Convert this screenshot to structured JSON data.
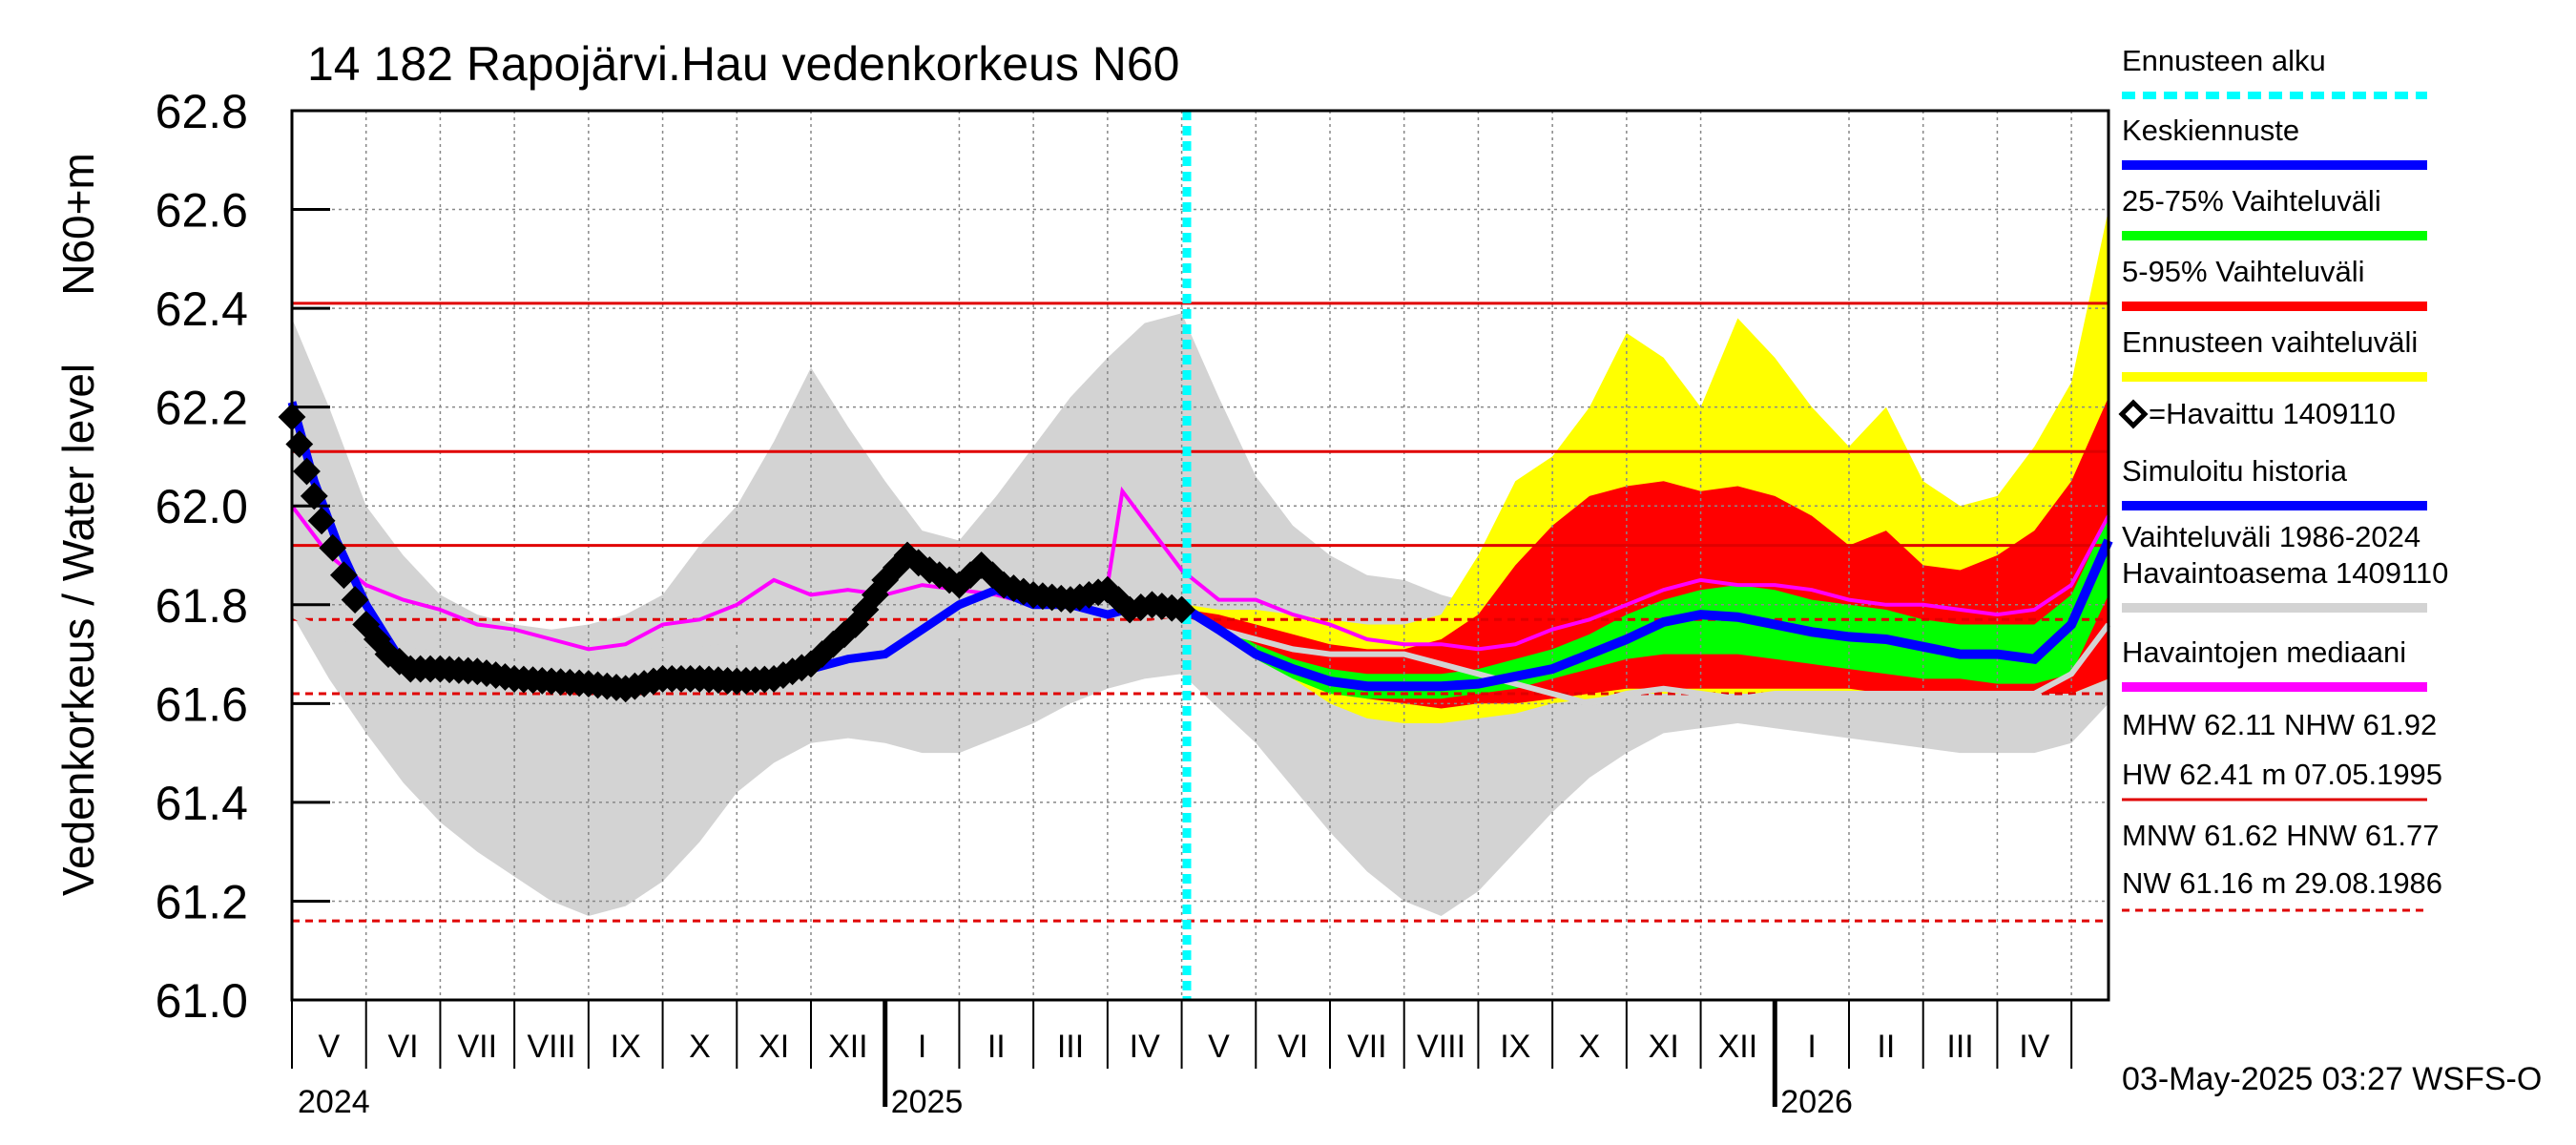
{
  "chart_data": {
    "type": "area",
    "title": "14 182 Rapojärvi.Hau vedenkorkeus N60",
    "ylabel_outer": "Vedenkorkeus / Water level",
    "ylabel_inner": "N60+m",
    "ylim": [
      61.0,
      62.8
    ],
    "y_ticks": [
      "62.8",
      "62.6",
      "62.4",
      "62.2",
      "62.0",
      "61.8",
      "61.6",
      "61.4",
      "61.2",
      "61.0"
    ],
    "x_range": [
      0.0,
      24.5
    ],
    "x_unit": "months since 2024-05-01",
    "month_labels": [
      "V",
      "VI",
      "VII",
      "VIII",
      "IX",
      "X",
      "XI",
      "XII",
      "I",
      "II",
      "III",
      "IV",
      "V",
      "VI",
      "VII",
      "VIII",
      "IX",
      "X",
      "XI",
      "XII",
      "I",
      "II",
      "III",
      "IV"
    ],
    "year_labels": [
      {
        "x": 0.0,
        "label": "2024"
      },
      {
        "x": 8.0,
        "label": "2025"
      },
      {
        "x": 20.0,
        "label": "2026"
      }
    ],
    "year_boundaries": [
      8.0,
      20.0
    ],
    "forecast_start_x": 12.07,
    "grid": true,
    "reference_lines": [
      {
        "name": "HW",
        "value": 62.41,
        "style": "solid"
      },
      {
        "name": "MHW",
        "value": 62.11,
        "style": "solid"
      },
      {
        "name": "NHW",
        "value": 61.92,
        "style": "solid"
      },
      {
        "name": "HNW",
        "value": 61.77,
        "style": "dashed"
      },
      {
        "name": "MNW",
        "value": 61.62,
        "style": "dashed"
      },
      {
        "name": "NW",
        "value": 61.16,
        "style": "dashed"
      }
    ],
    "series": {
      "history_band": {
        "x": [
          0,
          0.5,
          1,
          1.5,
          2,
          2.5,
          3,
          3.5,
          4,
          4.5,
          5,
          5.5,
          6,
          6.5,
          7,
          7.5,
          8,
          8.5,
          9,
          9.5,
          10,
          10.5,
          11,
          11.5,
          12,
          12.5,
          13,
          13.5,
          14,
          14.5,
          15,
          15.5,
          16,
          16.5,
          17,
          17.5,
          18,
          18.5,
          19,
          19.5,
          20,
          20.5,
          21,
          21.5,
          22,
          22.5,
          23,
          23.5,
          24,
          24.5
        ],
        "upper": [
          62.38,
          62.2,
          62.0,
          61.9,
          61.82,
          61.78,
          61.76,
          61.75,
          61.76,
          61.78,
          61.82,
          61.92,
          62.0,
          62.13,
          62.28,
          62.16,
          62.05,
          61.95,
          61.93,
          62.02,
          62.12,
          62.22,
          62.3,
          62.37,
          62.39,
          62.22,
          62.06,
          61.96,
          61.9,
          61.86,
          61.85,
          61.82,
          61.8,
          61.78,
          61.77,
          61.78,
          61.77,
          61.78,
          61.8,
          61.82,
          61.83,
          61.85,
          61.86,
          61.86,
          61.86,
          61.86,
          61.86,
          61.85,
          61.86,
          61.9
        ],
        "lower": [
          61.78,
          61.65,
          61.54,
          61.44,
          61.36,
          61.3,
          61.25,
          61.2,
          61.17,
          61.19,
          61.24,
          61.32,
          61.42,
          61.48,
          61.52,
          61.53,
          61.52,
          61.5,
          61.5,
          61.53,
          61.56,
          61.6,
          61.63,
          61.65,
          61.66,
          61.59,
          61.52,
          61.43,
          61.34,
          61.26,
          61.2,
          61.17,
          61.22,
          61.3,
          61.38,
          61.45,
          61.5,
          61.54,
          61.55,
          61.56,
          61.55,
          61.54,
          61.53,
          61.52,
          61.51,
          61.5,
          61.5,
          61.5,
          61.52,
          61.6
        ]
      },
      "ennusteen_vaihteluvali": {
        "x": [
          12.07,
          12.5,
          13,
          13.5,
          14,
          14.5,
          15,
          15.5,
          16,
          16.5,
          17,
          17.5,
          18,
          18.5,
          19,
          19.5,
          20,
          20.5,
          21,
          21.5,
          22,
          22.5,
          23,
          23.5,
          24,
          24.5
        ],
        "upper": [
          61.8,
          61.79,
          61.79,
          61.78,
          61.77,
          61.76,
          61.76,
          61.78,
          61.9,
          62.05,
          62.1,
          62.2,
          62.35,
          62.3,
          62.2,
          62.38,
          62.3,
          62.2,
          62.12,
          62.2,
          62.05,
          62.0,
          62.02,
          62.12,
          62.25,
          62.6
        ],
        "lower": [
          61.79,
          61.74,
          61.7,
          61.65,
          61.6,
          61.57,
          61.56,
          61.56,
          61.57,
          61.58,
          61.6,
          61.61,
          61.62,
          61.62,
          61.62,
          61.62,
          61.62,
          61.62,
          61.62,
          61.62,
          61.62,
          61.62,
          61.62,
          61.62,
          61.62,
          61.65
        ]
      },
      "vaihteluvali_5_95": {
        "x": [
          12.07,
          12.5,
          13,
          13.5,
          14,
          14.5,
          15,
          15.5,
          16,
          16.5,
          17,
          17.5,
          18,
          18.5,
          19,
          19.5,
          20,
          20.5,
          21,
          21.5,
          22,
          22.5,
          23,
          23.5,
          24,
          24.5
        ],
        "upper": [
          61.79,
          61.78,
          61.76,
          61.74,
          61.72,
          61.71,
          61.71,
          61.73,
          61.78,
          61.88,
          61.96,
          62.02,
          62.04,
          62.05,
          62.03,
          62.04,
          62.02,
          61.98,
          61.92,
          61.95,
          61.88,
          61.87,
          61.9,
          61.95,
          62.05,
          62.22
        ],
        "lower": [
          61.79,
          61.75,
          61.71,
          61.67,
          61.63,
          61.61,
          61.6,
          61.59,
          61.6,
          61.6,
          61.61,
          61.62,
          61.63,
          61.63,
          61.63,
          61.63,
          61.63,
          61.63,
          61.63,
          61.62,
          61.62,
          61.62,
          61.62,
          61.62,
          61.62,
          61.65
        ]
      },
      "vaihteluvali_25_75": {
        "x": [
          12.07,
          12.5,
          13,
          13.5,
          14,
          14.5,
          15,
          15.5,
          16,
          16.5,
          17,
          17.5,
          18,
          18.5,
          19,
          19.5,
          20,
          20.5,
          21,
          21.5,
          22,
          22.5,
          23,
          23.5,
          24,
          24.5
        ],
        "upper": [
          61.79,
          61.76,
          61.72,
          61.69,
          61.67,
          61.66,
          61.66,
          61.66,
          61.67,
          61.69,
          61.71,
          61.74,
          61.78,
          61.81,
          61.83,
          61.84,
          61.83,
          61.81,
          61.8,
          61.79,
          61.77,
          61.76,
          61.76,
          61.76,
          61.82,
          61.98
        ],
        "lower": [
          61.79,
          61.74,
          61.69,
          61.65,
          61.62,
          61.61,
          61.61,
          61.61,
          61.62,
          61.63,
          61.65,
          61.67,
          61.69,
          61.7,
          61.7,
          61.7,
          61.69,
          61.68,
          61.67,
          61.66,
          61.65,
          61.65,
          61.64,
          61.64,
          61.66,
          61.82
        ]
      },
      "keskiennuste": {
        "x": [
          12.07,
          12.5,
          13,
          13.5,
          14,
          14.5,
          15,
          15.5,
          16,
          16.5,
          17,
          17.5,
          18,
          18.5,
          19,
          19.5,
          20,
          20.5,
          21,
          21.5,
          22,
          22.5,
          23,
          23.5,
          24,
          24.5
        ],
        "values": [
          61.79,
          61.75,
          61.7,
          61.67,
          61.645,
          61.635,
          61.635,
          61.635,
          61.64,
          61.655,
          61.67,
          61.7,
          61.73,
          61.765,
          61.78,
          61.775,
          61.76,
          61.745,
          61.735,
          61.73,
          61.715,
          61.7,
          61.7,
          61.69,
          61.76,
          61.93
        ]
      },
      "simuloitu_historia": {
        "x": [
          0,
          0.3,
          0.6,
          1,
          1.5,
          2,
          2.5,
          3,
          3.5,
          4,
          4.5,
          5,
          5.5,
          6,
          6.5,
          7,
          7.5,
          8,
          8.5,
          9,
          9.5,
          10,
          10.5,
          11,
          11.5,
          12,
          12.07
        ],
        "values": [
          62.21,
          62.05,
          61.93,
          61.8,
          61.68,
          61.66,
          61.66,
          61.65,
          61.645,
          61.64,
          61.64,
          61.64,
          61.64,
          61.64,
          61.655,
          61.67,
          61.69,
          61.7,
          61.75,
          61.8,
          61.83,
          61.8,
          61.8,
          61.78,
          61.8,
          61.79,
          61.79
        ]
      },
      "havaittu": {
        "x": [
          0,
          0.2,
          0.4,
          0.7,
          1,
          1.3,
          1.6,
          2,
          2.5,
          3,
          3.5,
          4,
          4.5,
          5,
          5.5,
          6,
          6.5,
          7,
          7.3,
          7.6,
          8,
          8.3,
          8.6,
          9,
          9.3,
          9.6,
          10,
          10.5,
          11,
          11.3,
          11.6,
          12,
          12.07
        ],
        "values": [
          62.18,
          62.07,
          61.97,
          61.86,
          61.76,
          61.7,
          61.67,
          61.67,
          61.665,
          61.65,
          61.645,
          61.64,
          61.63,
          61.65,
          61.65,
          61.645,
          61.65,
          61.68,
          61.72,
          61.76,
          61.85,
          61.9,
          61.87,
          61.84,
          61.88,
          61.84,
          61.82,
          61.81,
          61.83,
          61.79,
          61.8,
          61.79,
          61.79
        ]
      },
      "havaintojen_mediaani": {
        "x": [
          0,
          0.5,
          1,
          1.5,
          2,
          2.5,
          3,
          3.5,
          4,
          4.5,
          5,
          5.5,
          6,
          6.5,
          7,
          7.5,
          8,
          8.5,
          9,
          9.5,
          10,
          10.5,
          11,
          11.2,
          11.5,
          12,
          12.5,
          13,
          13.5,
          14,
          14.5,
          15,
          15.5,
          16,
          16.5,
          17,
          17.5,
          18,
          18.5,
          19,
          19.5,
          20,
          20.5,
          21,
          21.5,
          22,
          22.5,
          23,
          23.5,
          24,
          24.5
        ],
        "values": [
          62.0,
          61.9,
          61.84,
          61.81,
          61.79,
          61.76,
          61.75,
          61.73,
          61.71,
          61.72,
          61.76,
          61.77,
          61.8,
          61.85,
          61.82,
          61.83,
          61.82,
          61.84,
          61.83,
          61.82,
          61.8,
          61.8,
          61.84,
          62.03,
          61.97,
          61.87,
          61.81,
          61.81,
          61.78,
          61.76,
          61.73,
          61.72,
          61.72,
          61.71,
          61.72,
          61.75,
          61.77,
          61.8,
          61.83,
          61.85,
          61.84,
          61.84,
          61.83,
          61.81,
          61.8,
          61.8,
          61.79,
          61.78,
          61.79,
          61.84,
          61.98
        ]
      },
      "vaihteluvali_line": {
        "x": [
          0,
          0.5,
          1,
          1.5,
          2,
          2.5,
          3,
          3.5,
          4,
          4.5,
          5,
          5.5,
          6,
          6.5,
          7,
          7.5,
          8,
          8.5,
          9,
          9.5,
          10,
          10.5,
          11,
          11.5,
          12,
          12.5,
          13,
          13.5,
          14,
          14.5,
          15,
          15.5,
          16,
          16.5,
          17,
          17.5,
          18,
          18.5,
          19,
          19.5,
          20,
          20.5,
          21,
          21.5,
          22,
          22.5,
          23,
          23.5,
          24,
          24.5
        ],
        "values": [
          61.78,
          61.74,
          61.72,
          61.71,
          61.7,
          61.7,
          61.7,
          61.7,
          61.7,
          61.71,
          61.72,
          61.72,
          61.73,
          61.73,
          61.73,
          61.74,
          61.74,
          61.74,
          61.74,
          61.74,
          61.75,
          61.75,
          61.75,
          61.76,
          61.77,
          61.75,
          61.73,
          61.71,
          61.7,
          61.7,
          61.7,
          61.68,
          61.66,
          61.64,
          61.62,
          61.6,
          61.62,
          61.63,
          61.62,
          61.61,
          61.62,
          61.62,
          61.62,
          61.62,
          61.62,
          61.62,
          61.62,
          61.62,
          61.66,
          61.76
        ]
      }
    },
    "legend": {
      "items": [
        {
          "label": "Ennusteen alku",
          "color": "#00ffff",
          "style": "dashed"
        },
        {
          "label": "Keskiennuste",
          "color": "#0000ff",
          "style": "solid"
        },
        {
          "label": "25-75% Vaihteluväli",
          "color": "#00ff00",
          "style": "solid"
        },
        {
          "label": "5-95% Vaihteluväli",
          "color": "#ff0000",
          "style": "solid"
        },
        {
          "label": "Ennusteen vaihteluväli",
          "color": "#ffff00",
          "style": "solid"
        },
        {
          "label": "=Havaittu 1409110",
          "color": "#000000",
          "style": "diamond"
        },
        {
          "label": "Simuloitu historia",
          "color": "#0000ff",
          "style": "solid"
        },
        {
          "label": "Vaihteluväli 1986-2024",
          "label2": " Havaintoasema 1409110",
          "color": "#d3d3d3",
          "style": "solid"
        },
        {
          "label": "Havaintojen mediaani",
          "color": "#ff00ff",
          "style": "solid"
        }
      ],
      "stats_high_line1": "MHW  62.11 NHW  61.92",
      "stats_high_line2": "HW  62.41 m 07.05.1995",
      "stats_low_line1": "MNW  61.62 HNW  61.77",
      "stats_low_line2": "NW  61.16 m 29.08.1986"
    },
    "footer": "03-May-2025 03:27 WSFS-O",
    "colors": {
      "history_band": "#d3d3d3",
      "ennuste_band": "#ffff00",
      "band_5_95": "#ff0000",
      "band_25_75": "#00ff00",
      "keskiennuste": "#0000ff",
      "simuloitu": "#0000ff",
      "havaittu": "#000000",
      "mediaani": "#ff00ff",
      "forecast_start": "#00ffff",
      "reference": "#e00000",
      "grid": "#888888"
    }
  }
}
